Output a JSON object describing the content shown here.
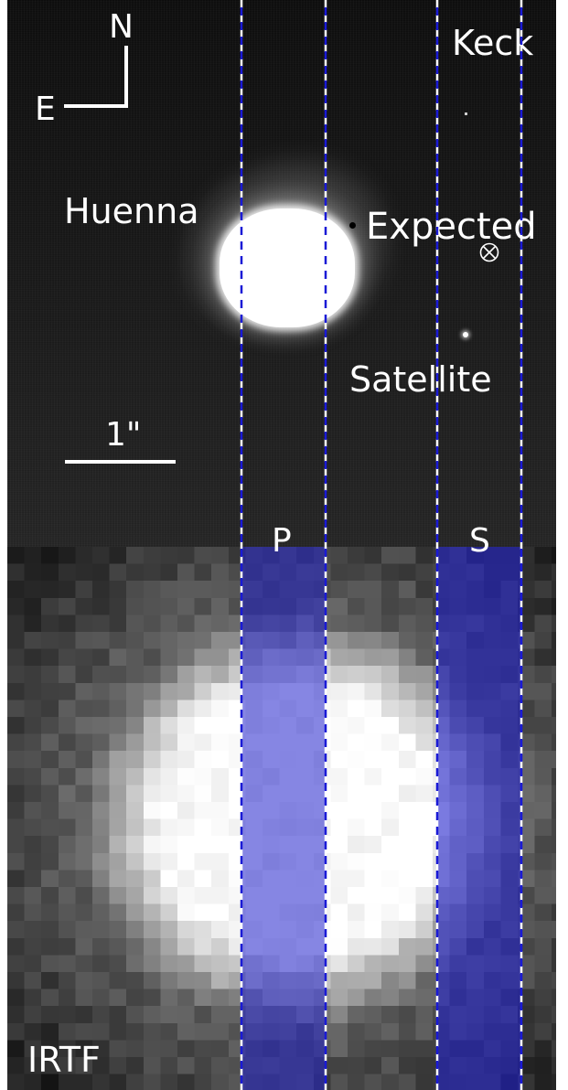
{
  "top_panel": {
    "telescope": "Keck",
    "asteroid_label": "Huenna",
    "expected_label": "Expected",
    "satellite_label": "Satellite",
    "scale_label": "1\"",
    "compass": {
      "north": "N",
      "east": "E"
    }
  },
  "bottom_panel": {
    "telescope": "IRTF"
  },
  "slits": {
    "primary": "P",
    "secondary": "S"
  },
  "colors": {
    "slit_dash_white": "#ffffff",
    "slit_dash_blue": "#1a1ad6",
    "slit_fill": "#2020c8"
  },
  "icons": {
    "expected_position_marker": "circled-times-icon",
    "compass": "compass-icon"
  }
}
